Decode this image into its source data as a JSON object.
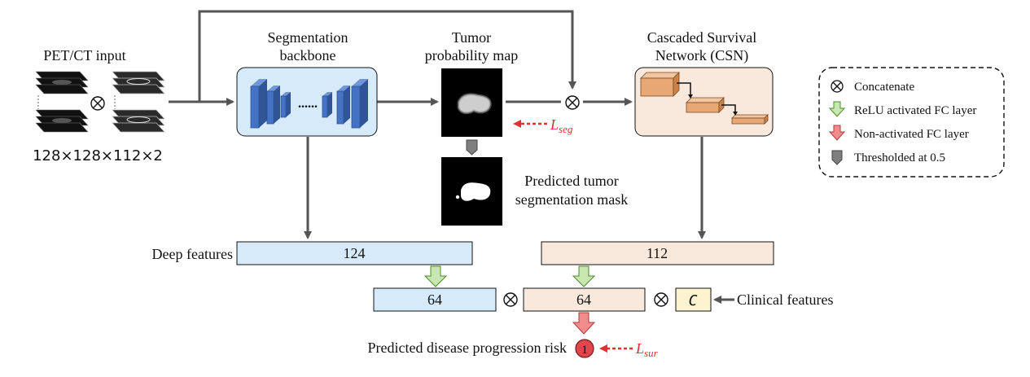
{
  "input": {
    "label": "PET/CT input",
    "dims": "128×128×112×2"
  },
  "segmentation": {
    "label_line1": "Segmentation",
    "label_line2": "backbone",
    "dots": "......"
  },
  "probability_map": {
    "label_line1": "Tumor",
    "label_line2": "probability map",
    "loss_main": "L",
    "loss_sub": "seg"
  },
  "mask": {
    "label_line1": "Predicted tumor",
    "label_line2": "segmentation mask"
  },
  "csn": {
    "label_line1": "Cascaded Survival",
    "label_line2": "Network (CSN)"
  },
  "legend": {
    "items": [
      {
        "text": "Concatenate",
        "icon": "concat-icon"
      },
      {
        "text": "ReLU activated FC layer",
        "icon": "green-arrow-icon"
      },
      {
        "text": "Non-activated FC layer",
        "icon": "red-arrow-icon"
      },
      {
        "text": "Thresholded at 0.5",
        "icon": "gray-pentagon-icon"
      }
    ]
  },
  "features": {
    "deep_label": "Deep features",
    "deep_value": "124",
    "csn_value": "112",
    "fc_deep_value": "64",
    "fc_csn_value": "64",
    "clinical_symbol": "C",
    "clinical_label": "Clinical features"
  },
  "output": {
    "label": "Predicted disease progression risk",
    "value": "1",
    "loss_main": "L",
    "loss_sub": "sur"
  },
  "colors": {
    "blue_fill": "#d6eaf9",
    "blue_bar": "#4472c4",
    "peach_fill": "#f9e9dd",
    "cube_fill": "#e8a876",
    "clinical_fill": "#fdf3cf",
    "green_arrow": "#c8e6b0",
    "red_arrow": "#f28b8b",
    "gray_arrow": "#7f7f7f",
    "loss_red": "#e03030"
  }
}
